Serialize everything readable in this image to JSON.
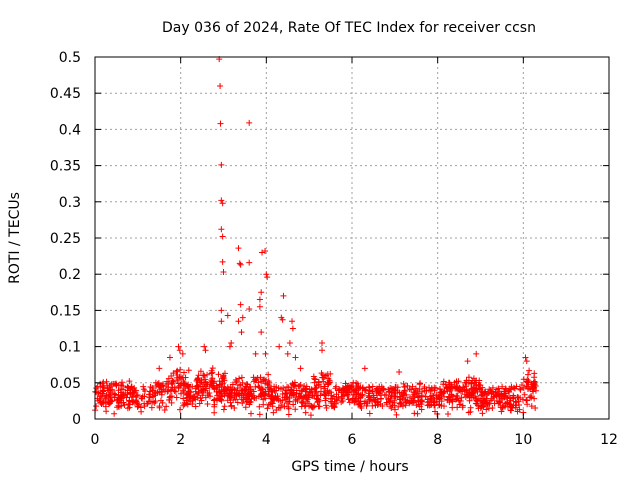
{
  "chart_data": {
    "type": "scatter",
    "title": "Day 036 of 2024, Rate Of TEC Index for receiver ccsn",
    "xlabel": "GPS time / hours",
    "ylabel": "ROTI / TECUs",
    "xlim": [
      0,
      12
    ],
    "ylim": [
      0,
      0.5
    ],
    "xticks": [
      0,
      2,
      4,
      6,
      8,
      10,
      12
    ],
    "yticks": [
      0,
      0.05,
      0.1,
      0.15,
      0.2,
      0.25,
      0.3,
      0.35,
      0.4,
      0.45,
      0.5
    ],
    "grid": true,
    "marker": "+",
    "series": [
      {
        "name": "ROTI",
        "color": "#ff0000",
        "baseline": {
          "x_range": [
            0,
            10.3
          ],
          "typical_range": [
            0.015,
            0.045
          ]
        },
        "points": [
          {
            "x": 2.9,
            "y": 0.497
          },
          {
            "x": 2.92,
            "y": 0.46
          },
          {
            "x": 2.93,
            "y": 0.408
          },
          {
            "x": 3.6,
            "y": 0.409
          },
          {
            "x": 2.95,
            "y": 0.351
          },
          {
            "x": 2.95,
            "y": 0.302
          },
          {
            "x": 2.98,
            "y": 0.298
          },
          {
            "x": 2.95,
            "y": 0.262
          },
          {
            "x": 2.98,
            "y": 0.252
          },
          {
            "x": 3.35,
            "y": 0.236
          },
          {
            "x": 3.9,
            "y": 0.23
          },
          {
            "x": 3.97,
            "y": 0.232
          },
          {
            "x": 2.98,
            "y": 0.217
          },
          {
            "x": 3.38,
            "y": 0.215
          },
          {
            "x": 3.6,
            "y": 0.216
          },
          {
            "x": 3.4,
            "y": 0.213
          },
          {
            "x": 3.0,
            "y": 0.203
          },
          {
            "x": 4.0,
            "y": 0.2
          },
          {
            "x": 4.02,
            "y": 0.196
          },
          {
            "x": 4.4,
            "y": 0.17
          },
          {
            "x": 3.88,
            "y": 0.175
          },
          {
            "x": 3.4,
            "y": 0.158
          },
          {
            "x": 3.85,
            "y": 0.165
          },
          {
            "x": 3.6,
            "y": 0.152
          },
          {
            "x": 2.95,
            "y": 0.15
          },
          {
            "x": 3.1,
            "y": 0.143
          },
          {
            "x": 4.35,
            "y": 0.14
          },
          {
            "x": 4.38,
            "y": 0.137
          },
          {
            "x": 3.85,
            "y": 0.155
          },
          {
            "x": 3.35,
            "y": 0.135
          },
          {
            "x": 3.45,
            "y": 0.14
          },
          {
            "x": 2.95,
            "y": 0.135
          },
          {
            "x": 4.6,
            "y": 0.135
          },
          {
            "x": 4.62,
            "y": 0.125
          },
          {
            "x": 3.88,
            "y": 0.12
          },
          {
            "x": 3.42,
            "y": 0.12
          },
          {
            "x": 4.55,
            "y": 0.105
          },
          {
            "x": 4.3,
            "y": 0.1
          },
          {
            "x": 5.3,
            "y": 0.105
          },
          {
            "x": 3.15,
            "y": 0.1
          },
          {
            "x": 3.18,
            "y": 0.105
          },
          {
            "x": 2.55,
            "y": 0.1
          },
          {
            "x": 2.58,
            "y": 0.095
          },
          {
            "x": 1.95,
            "y": 0.1
          },
          {
            "x": 1.98,
            "y": 0.095
          },
          {
            "x": 2.05,
            "y": 0.09
          },
          {
            "x": 3.75,
            "y": 0.09
          },
          {
            "x": 3.98,
            "y": 0.09
          },
          {
            "x": 4.5,
            "y": 0.09
          },
          {
            "x": 4.68,
            "y": 0.085
          },
          {
            "x": 5.3,
            "y": 0.095
          },
          {
            "x": 8.9,
            "y": 0.09
          },
          {
            "x": 10.05,
            "y": 0.085
          },
          {
            "x": 10.08,
            "y": 0.08
          },
          {
            "x": 8.7,
            "y": 0.08
          },
          {
            "x": 1.75,
            "y": 0.085
          },
          {
            "x": 4.8,
            "y": 0.07
          },
          {
            "x": 1.5,
            "y": 0.07
          },
          {
            "x": 6.3,
            "y": 0.07
          },
          {
            "x": 7.1,
            "y": 0.065
          }
        ]
      }
    ]
  }
}
